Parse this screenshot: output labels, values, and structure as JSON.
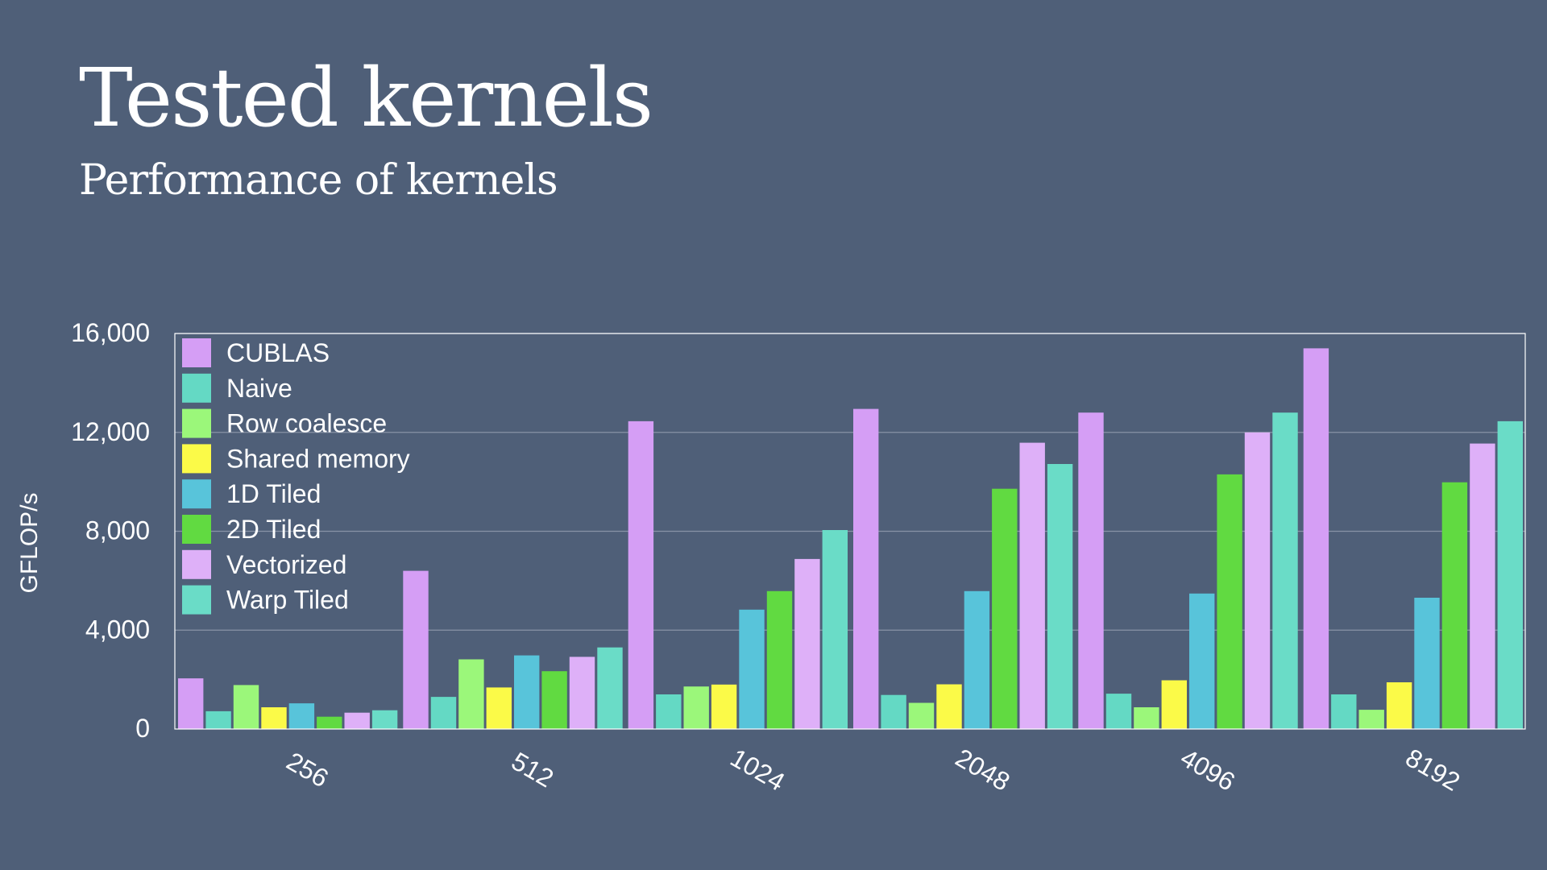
{
  "slide": {
    "title": "Tested kernels",
    "subtitle": "Performance of kernels"
  },
  "colors": {
    "background": "#4f5f78",
    "text": "#ffffff",
    "gridline": "#8893a6"
  },
  "chart_data": {
    "type": "bar",
    "categories": [
      "256",
      "512",
      "1024",
      "2048",
      "4096",
      "8192"
    ],
    "ylabel": "GFLOP/s",
    "xlabel": "",
    "ylim": [
      0,
      16000
    ],
    "yticks": [
      0,
      4000,
      8000,
      12000,
      16000
    ],
    "ytick_labels": [
      "0",
      "4,000",
      "8,000",
      "12,000",
      "16,000"
    ],
    "grid": true,
    "legend_position": "top-left",
    "series": [
      {
        "name": "CUBLAS",
        "color": "#d59ef5",
        "values": [
          2050,
          6400,
          12450,
          12950,
          12800,
          15400
        ]
      },
      {
        "name": "Naive",
        "color": "#64d9c4",
        "values": [
          720,
          1300,
          1400,
          1380,
          1430,
          1400
        ]
      },
      {
        "name": "Row coalesce",
        "color": "#9bf77a",
        "values": [
          1780,
          2820,
          1720,
          1060,
          880,
          780
        ]
      },
      {
        "name": "Shared memory",
        "color": "#fbfa48",
        "values": [
          880,
          1680,
          1800,
          1810,
          1970,
          1890
        ]
      },
      {
        "name": "1D Tiled",
        "color": "#58c4da",
        "values": [
          1040,
          2980,
          4830,
          5580,
          5480,
          5310
        ]
      },
      {
        "name": "2D Tiled",
        "color": "#61da41",
        "values": [
          500,
          2340,
          5580,
          9720,
          10300,
          9980
        ]
      },
      {
        "name": "Vectorized",
        "color": "#deb0f8",
        "values": [
          660,
          2920,
          6880,
          11580,
          12000,
          11550
        ]
      },
      {
        "name": "Warp Tiled",
        "color": "#6adcc7",
        "values": [
          760,
          3300,
          8050,
          10720,
          12800,
          12450
        ]
      }
    ]
  }
}
